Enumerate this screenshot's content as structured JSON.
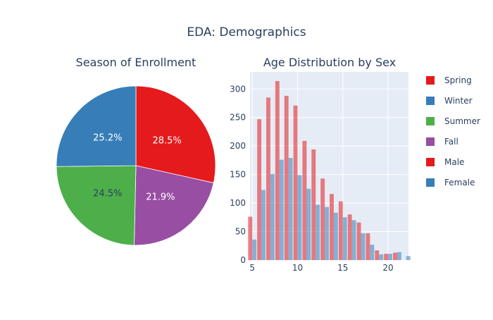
{
  "title": "EDA: Demographics",
  "chart_data": [
    {
      "type": "pie",
      "title": "Season of Enrollment",
      "slices": [
        {
          "label": "Spring",
          "value": 28.5,
          "text": "28.5%",
          "color": "#e41a1c",
          "text_color": "#ffffff"
        },
        {
          "label": "Fall",
          "value": 21.9,
          "text": "21.9%",
          "color": "#984ea3",
          "text_color": "#ffffff"
        },
        {
          "label": "Summer",
          "value": 24.5,
          "text": "24.5%",
          "color": "#4daf4a",
          "text_color": "#2a3f5f"
        },
        {
          "label": "Winter",
          "value": 25.2,
          "text": "25.2%",
          "color": "#377eb8",
          "text_color": "#ffffff"
        }
      ]
    },
    {
      "type": "bar",
      "title": "Age Distribution by Sex",
      "xlabel": "",
      "ylabel": "",
      "x": [
        5,
        6,
        7,
        8,
        9,
        10,
        11,
        12,
        13,
        14,
        15,
        16,
        17,
        18,
        19,
        20,
        21,
        22
      ],
      "series": [
        {
          "name": "Male",
          "color": "#e41a1c",
          "opacity": 0.55,
          "values": [
            76,
            247,
            285,
            314,
            288,
            271,
            209,
            194,
            143,
            116,
            103,
            80,
            66,
            47,
            17,
            11,
            13,
            0
          ]
        },
        {
          "name": "Female",
          "color": "#377eb8",
          "opacity": 0.55,
          "values": [
            36,
            123,
            151,
            176,
            179,
            149,
            125,
            97,
            93,
            83,
            75,
            70,
            47,
            27,
            10,
            11,
            14,
            7
          ]
        }
      ],
      "xticks": [
        5,
        10,
        15,
        20
      ],
      "yticks": [
        0,
        50,
        100,
        150,
        200,
        250,
        300
      ],
      "xlim": [
        4.75,
        22.25
      ],
      "ylim": [
        0,
        330
      ],
      "grid": true,
      "plot_bgcolor": "#e5ecf6"
    }
  ],
  "legend": {
    "placement": "right",
    "items": [
      {
        "label": "Spring",
        "color": "#e41a1c"
      },
      {
        "label": "Winter",
        "color": "#377eb8"
      },
      {
        "label": "Summer",
        "color": "#4daf4a"
      },
      {
        "label": "Fall",
        "color": "#984ea3"
      },
      {
        "label": "Male",
        "color": "#e41a1c"
      },
      {
        "label": "Female",
        "color": "#377eb8"
      }
    ]
  }
}
